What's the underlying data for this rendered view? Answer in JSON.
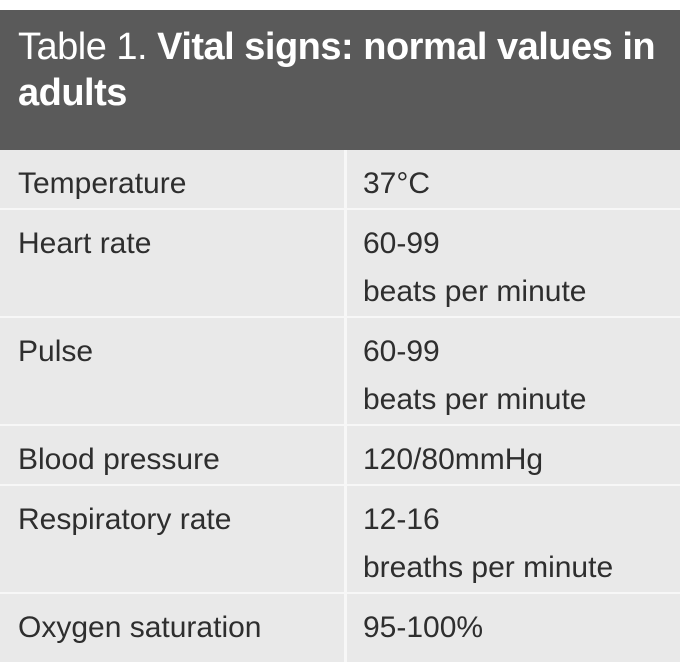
{
  "table": {
    "title_prefix": "Table 1. ",
    "title_main": "Vital signs: normal values in adults",
    "rows": [
      {
        "label": "Temperature",
        "value_line1": "37°C",
        "value_line2": ""
      },
      {
        "label": "Heart rate",
        "value_line1": "60-99",
        "value_line2": "beats per minute"
      },
      {
        "label": "Pulse",
        "value_line1": "60-99",
        "value_line2": "beats per minute"
      },
      {
        "label": "Blood pressure",
        "value_line1": "120/80mmHg",
        "value_line2": ""
      },
      {
        "label": "Respiratory rate",
        "value_line1": "12-16",
        "value_line2": "breaths per minute"
      },
      {
        "label": "Oxygen saturation",
        "value_line1": "95-100%",
        "value_line2": ""
      }
    ]
  },
  "colors": {
    "header_background": "#5a5a5a",
    "body_background": "#e9e9e9",
    "divider": "#f7f7f7",
    "text": "#2e2e2e",
    "header_text": "#ffffff"
  }
}
